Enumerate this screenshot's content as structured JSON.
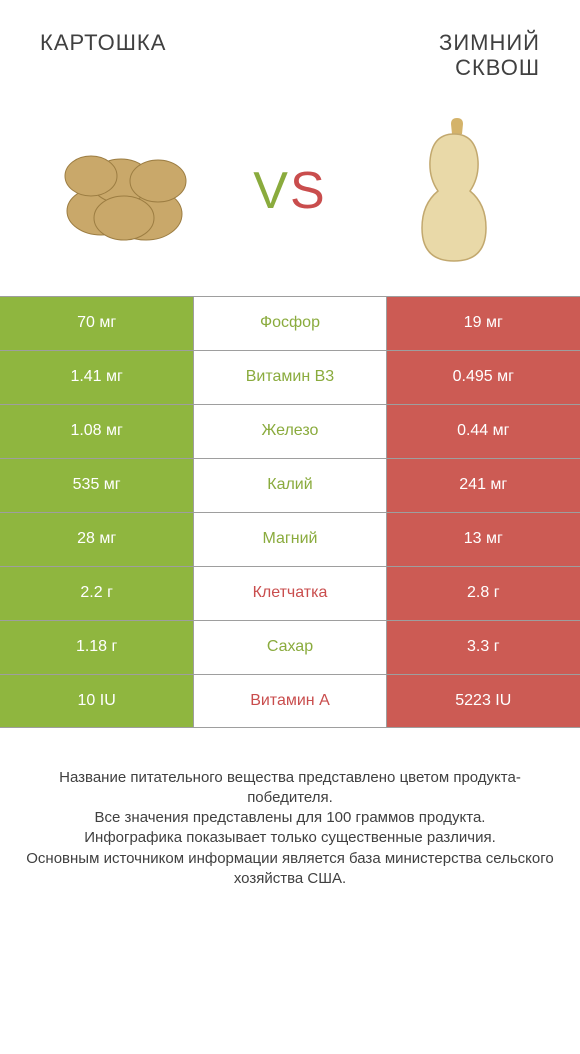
{
  "header": {
    "left_title": "КАРТОШКА",
    "right_title_line1": "ЗИМНИЙ",
    "right_title_line2": "СКВОШ",
    "vs_v": "V",
    "vs_s": "S"
  },
  "colors": {
    "left": "#8fb63f",
    "right": "#cc5b54",
    "left_text": "#8aab3d",
    "right_text": "#c94d4d",
    "border": "#9e9e9e",
    "potato_fill": "#c9a86a",
    "potato_stroke": "#9c7d42",
    "squash_fill": "#e9d9a8",
    "squash_stroke": "#c2a86e",
    "squash_stem": "#d4b36a"
  },
  "rows": [
    {
      "left": "70 мг",
      "label": "Фосфор",
      "right": "19 мг",
      "winner": "left"
    },
    {
      "left": "1.41 мг",
      "label": "Витамин B3",
      "right": "0.495 мг",
      "winner": "left"
    },
    {
      "left": "1.08 мг",
      "label": "Железо",
      "right": "0.44 мг",
      "winner": "left"
    },
    {
      "left": "535 мг",
      "label": "Калий",
      "right": "241 мг",
      "winner": "left"
    },
    {
      "left": "28 мг",
      "label": "Магний",
      "right": "13 мг",
      "winner": "left"
    },
    {
      "left": "2.2 г",
      "label": "Клетчатка",
      "right": "2.8 г",
      "winner": "right"
    },
    {
      "left": "1.18 г",
      "label": "Сахар",
      "right": "3.3 г",
      "winner": "left"
    },
    {
      "left": "10 IU",
      "label": "Витамин A",
      "right": "5223 IU",
      "winner": "right"
    }
  ],
  "footer": {
    "line1": "Название питательного вещества представлено цветом продукта-победителя.",
    "line2": "Все значения представлены для 100 граммов продукта.",
    "line3": "Инфографика показывает только существенные различия.",
    "line4": "Основным источником информации является база министерства сельского хозяйства США."
  }
}
